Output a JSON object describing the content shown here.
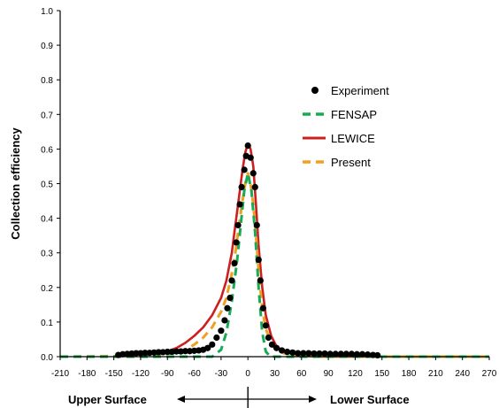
{
  "chart_data": {
    "type": "line",
    "xlabel": "",
    "ylabel": "Collection efficiency",
    "xlim": [
      -210,
      270
    ],
    "ylim": [
      0,
      1.0
    ],
    "x_ticks": [
      -210,
      -180,
      -150,
      -120,
      -90,
      -60,
      -30,
      0,
      30,
      60,
      90,
      120,
      150,
      180,
      210,
      240,
      270
    ],
    "y_ticks": [
      "0.0",
      "0.1",
      "0.2",
      "0.3",
      "0.4",
      "0.5",
      "0.6",
      "0.7",
      "0.8",
      "0.9",
      "1.0"
    ],
    "grid": false,
    "legend_position": "right",
    "annotations": {
      "left": "Upper Surface",
      "right": "Lower Surface"
    },
    "series": [
      {
        "name": "Experiment",
        "style": "markers",
        "color": "#000000",
        "points": [
          [
            -145,
            0.005
          ],
          [
            -140,
            0.007
          ],
          [
            -135,
            0.008
          ],
          [
            -130,
            0.009
          ],
          [
            -125,
            0.01
          ],
          [
            -120,
            0.01
          ],
          [
            -115,
            0.011
          ],
          [
            -110,
            0.011
          ],
          [
            -105,
            0.012
          ],
          [
            -100,
            0.013
          ],
          [
            -95,
            0.013
          ],
          [
            -90,
            0.014
          ],
          [
            -85,
            0.014
          ],
          [
            -80,
            0.015
          ],
          [
            -75,
            0.015
          ],
          [
            -70,
            0.016
          ],
          [
            -65,
            0.016
          ],
          [
            -60,
            0.017
          ],
          [
            -55,
            0.018
          ],
          [
            -50,
            0.02
          ],
          [
            -45,
            0.025
          ],
          [
            -40,
            0.035
          ],
          [
            -35,
            0.055
          ],
          [
            -30,
            0.075
          ],
          [
            -26,
            0.105
          ],
          [
            -23,
            0.14
          ],
          [
            -20,
            0.17
          ],
          [
            -18,
            0.22
          ],
          [
            -15,
            0.27
          ],
          [
            -13,
            0.33
          ],
          [
            -11,
            0.38
          ],
          [
            -9,
            0.44
          ],
          [
            -7,
            0.49
          ],
          [
            -4,
            0.54
          ],
          [
            -2,
            0.58
          ],
          [
            0,
            0.61
          ],
          [
            3,
            0.575
          ],
          [
            6,
            0.53
          ],
          [
            8,
            0.49
          ],
          [
            10,
            0.38
          ],
          [
            12,
            0.28
          ],
          [
            14,
            0.22
          ],
          [
            17,
            0.14
          ],
          [
            20,
            0.09
          ],
          [
            23,
            0.055
          ],
          [
            27,
            0.035
          ],
          [
            32,
            0.025
          ],
          [
            38,
            0.018
          ],
          [
            44,
            0.014
          ],
          [
            50,
            0.012
          ],
          [
            56,
            0.01
          ],
          [
            62,
            0.01
          ],
          [
            68,
            0.01
          ],
          [
            74,
            0.009
          ],
          [
            80,
            0.009
          ],
          [
            86,
            0.009
          ],
          [
            92,
            0.008
          ],
          [
            98,
            0.008
          ],
          [
            104,
            0.008
          ],
          [
            110,
            0.008
          ],
          [
            116,
            0.008
          ],
          [
            122,
            0.007
          ],
          [
            128,
            0.007
          ],
          [
            134,
            0.006
          ],
          [
            140,
            0.005
          ],
          [
            145,
            0.004
          ]
        ]
      },
      {
        "name": "FENSAP",
        "style": "dashed",
        "color": "#1aaa55",
        "points": [
          [
            -210,
            0.0
          ],
          [
            -60,
            0.0
          ],
          [
            -40,
            0.0
          ],
          [
            -30,
            0.02
          ],
          [
            -24,
            0.07
          ],
          [
            -18,
            0.16
          ],
          [
            -12,
            0.28
          ],
          [
            -8,
            0.38
          ],
          [
            -4,
            0.48
          ],
          [
            0,
            0.53
          ],
          [
            4,
            0.48
          ],
          [
            8,
            0.36
          ],
          [
            12,
            0.2
          ],
          [
            16,
            0.07
          ],
          [
            20,
            0.015
          ],
          [
            25,
            0.0
          ],
          [
            60,
            0.0
          ],
          [
            270,
            0.0
          ]
        ]
      },
      {
        "name": "LEWICE",
        "style": "solid",
        "color": "#cc1f1f",
        "points": [
          [
            -120,
            0.005
          ],
          [
            -100,
            0.01
          ],
          [
            -90,
            0.015
          ],
          [
            -80,
            0.025
          ],
          [
            -70,
            0.04
          ],
          [
            -60,
            0.06
          ],
          [
            -50,
            0.085
          ],
          [
            -40,
            0.12
          ],
          [
            -30,
            0.17
          ],
          [
            -24,
            0.22
          ],
          [
            -18,
            0.3
          ],
          [
            -14,
            0.38
          ],
          [
            -10,
            0.46
          ],
          [
            -6,
            0.54
          ],
          [
            -3,
            0.59
          ],
          [
            0,
            0.615
          ],
          [
            3,
            0.6
          ],
          [
            6,
            0.55
          ],
          [
            9,
            0.44
          ],
          [
            12,
            0.32
          ],
          [
            16,
            0.2
          ],
          [
            20,
            0.12
          ],
          [
            26,
            0.06
          ],
          [
            32,
            0.03
          ],
          [
            40,
            0.015
          ],
          [
            50,
            0.008
          ],
          [
            60,
            0.005
          ],
          [
            80,
            0.002
          ],
          [
            100,
            0.0
          ]
        ]
      },
      {
        "name": "Present",
        "style": "dashed",
        "color": "#f0a020",
        "points": [
          [
            -210,
            0.0
          ],
          [
            -120,
            0.002
          ],
          [
            -100,
            0.005
          ],
          [
            -85,
            0.01
          ],
          [
            -70,
            0.02
          ],
          [
            -60,
            0.035
          ],
          [
            -50,
            0.055
          ],
          [
            -40,
            0.085
          ],
          [
            -30,
            0.13
          ],
          [
            -24,
            0.17
          ],
          [
            -18,
            0.24
          ],
          [
            -14,
            0.3
          ],
          [
            -10,
            0.38
          ],
          [
            -6,
            0.45
          ],
          [
            -3,
            0.5
          ],
          [
            0,
            0.53
          ],
          [
            3,
            0.5
          ],
          [
            6,
            0.44
          ],
          [
            9,
            0.35
          ],
          [
            12,
            0.25
          ],
          [
            16,
            0.14
          ],
          [
            20,
            0.08
          ],
          [
            26,
            0.04
          ],
          [
            32,
            0.02
          ],
          [
            40,
            0.01
          ],
          [
            55,
            0.004
          ],
          [
            80,
            0.0
          ],
          [
            270,
            0.0
          ]
        ]
      }
    ]
  }
}
